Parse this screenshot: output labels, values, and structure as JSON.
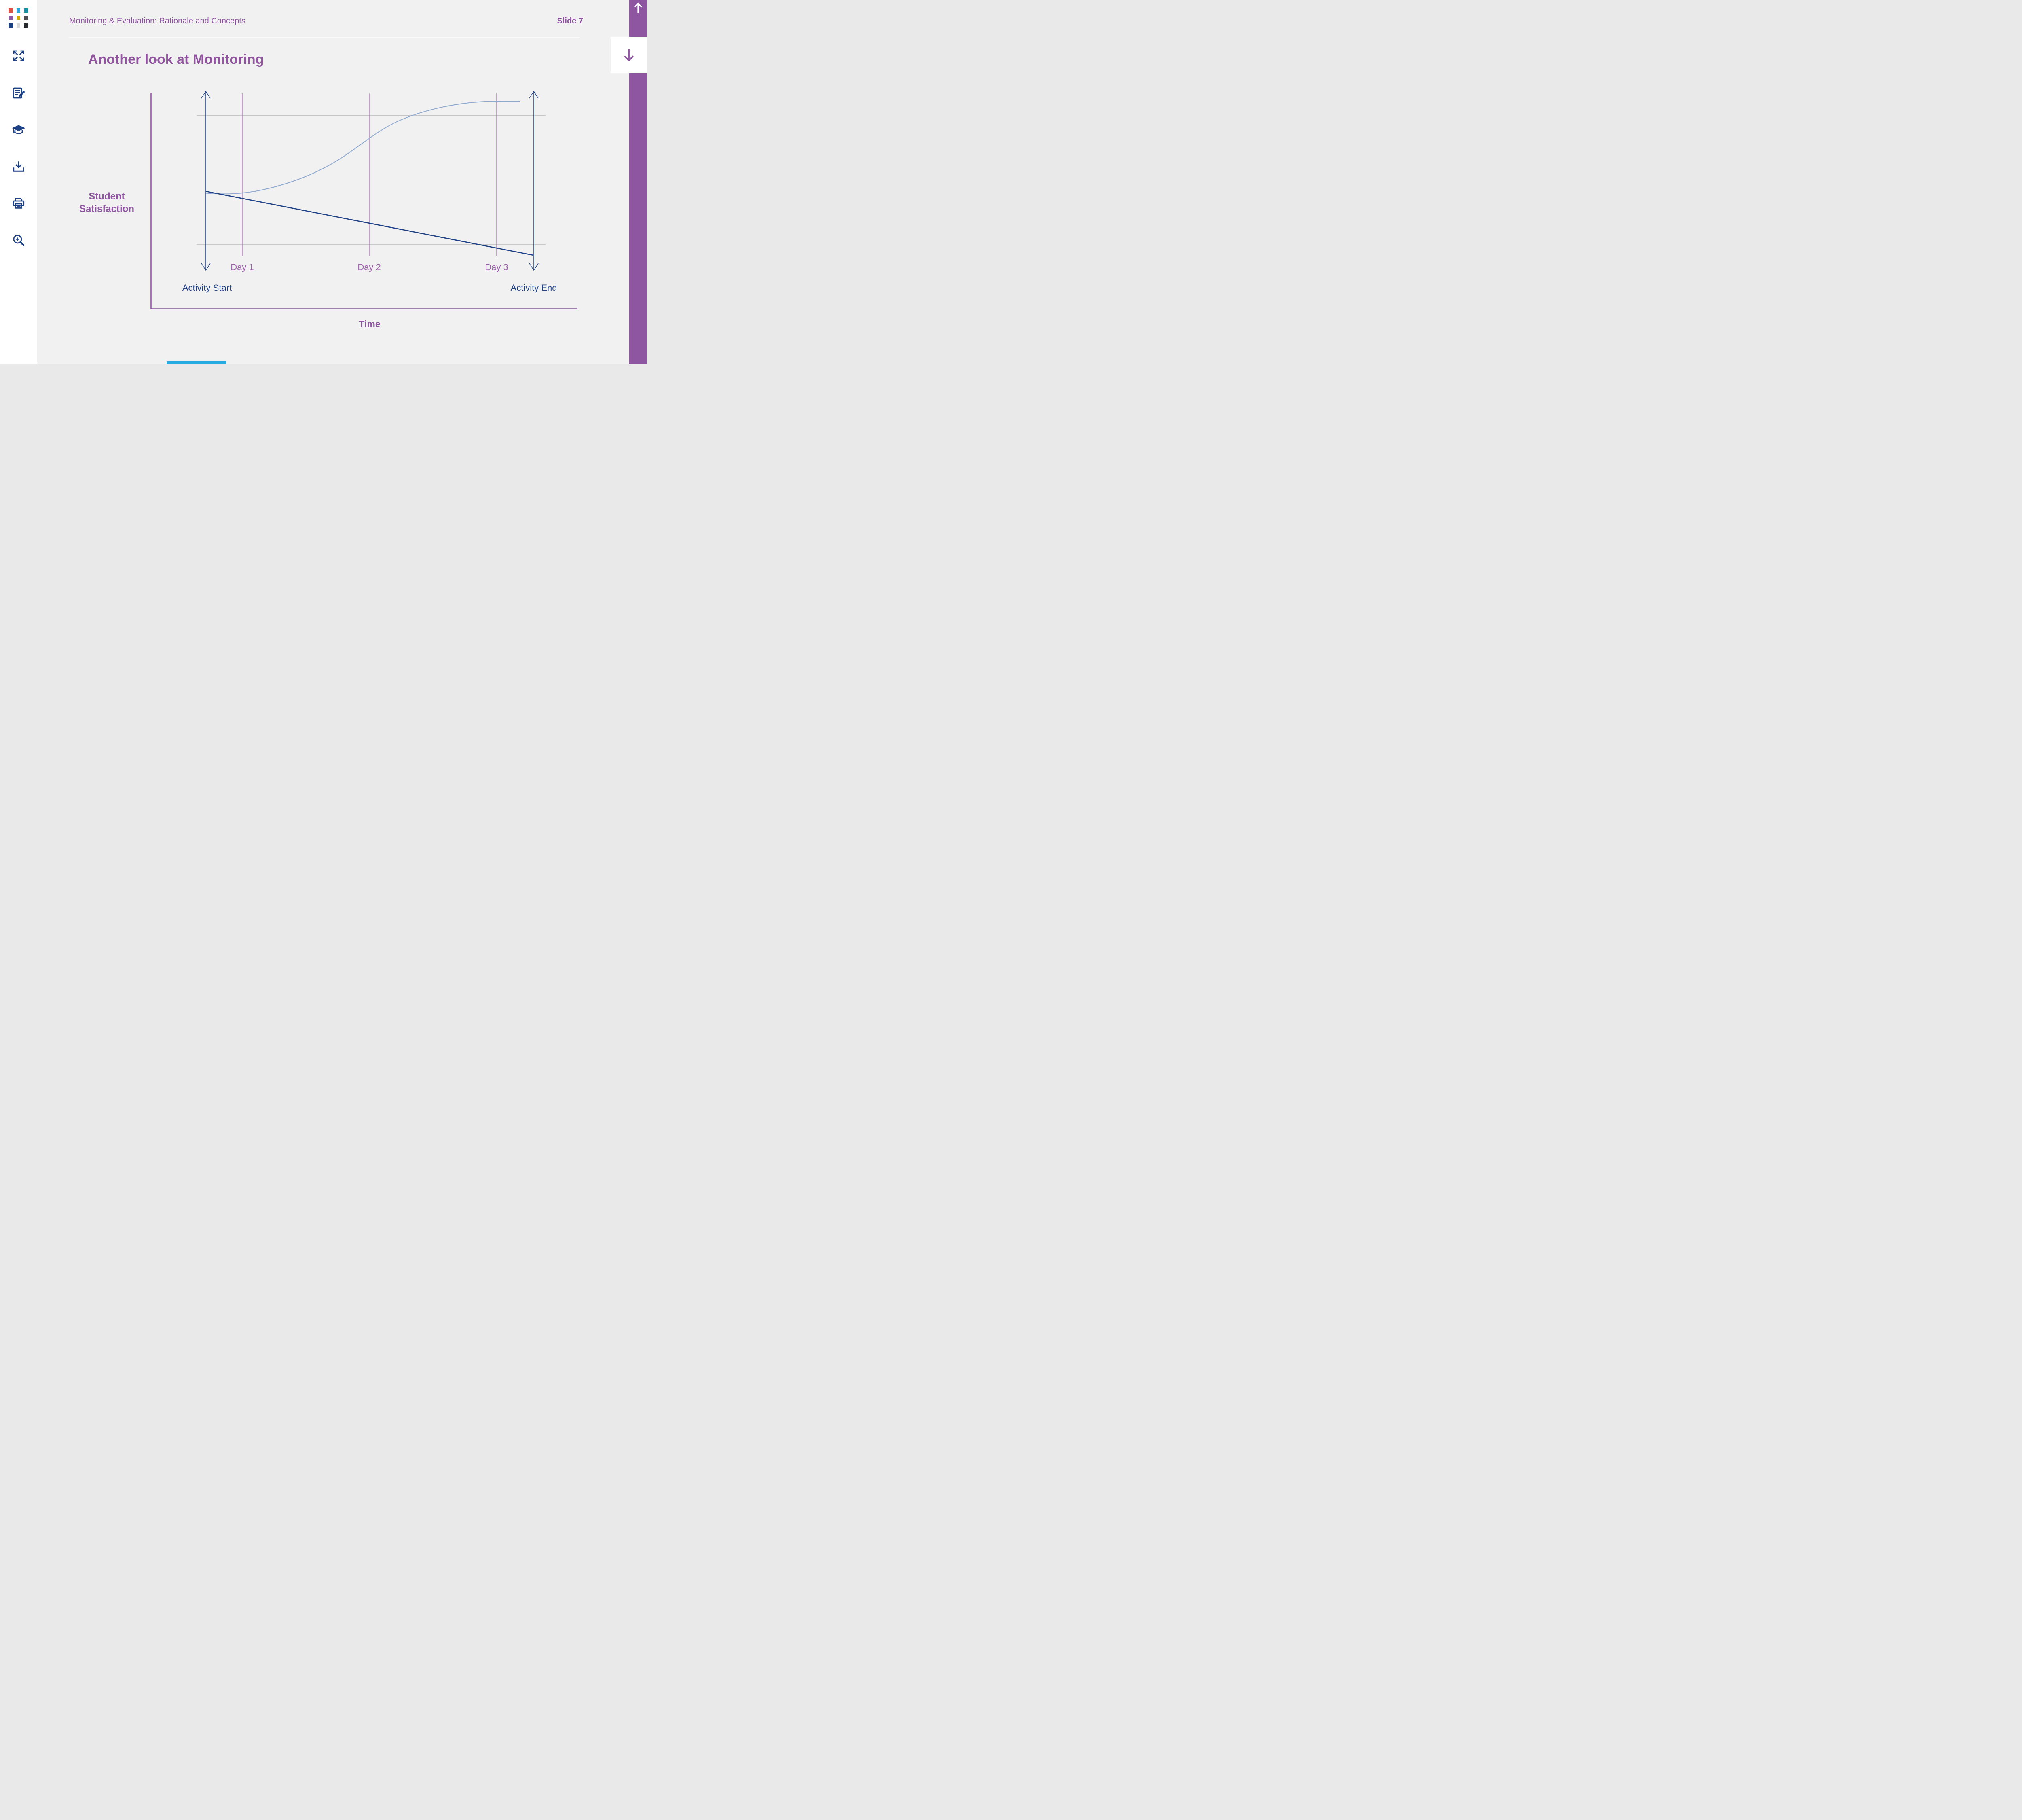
{
  "page": {
    "background": "#F1F1F2",
    "accent_purple": "#91549F",
    "rail_purple": "#8E55A0",
    "navy": "#1F4287",
    "steel_blue": "#8FA9CE",
    "grid_gray": "#B0B0B3",
    "progress_blue": "#29ABE2"
  },
  "header": {
    "course_title": "Monitoring & Evaluation: Rationale and Concepts",
    "slide_label": "Slide 7"
  },
  "sidebar": {
    "logo_colors": [
      "#DC5243",
      "#29A8DF",
      "#0D93A3",
      "#9158A4",
      "#D4A900",
      "#4F4F51",
      "#1C4084",
      "#D6D6D8",
      "#26292E"
    ],
    "icons": [
      {
        "name": "fullscreen"
      },
      {
        "name": "notes"
      },
      {
        "name": "education"
      },
      {
        "name": "download"
      },
      {
        "name": "print"
      },
      {
        "name": "zoom-in"
      }
    ]
  },
  "navigation": {
    "icons": [
      "scroll-up-arrow",
      "scroll-down-arrow"
    ]
  },
  "slide": {
    "title": "Another look at Monitoring"
  },
  "chart_data": {
    "type": "line",
    "title": "Another look at Monitoring",
    "xlabel": "Time",
    "ylabel": "Student Satisfaction",
    "categories": [
      "Day 1",
      "Day 2",
      "Day 3"
    ],
    "annotations": [
      "Activity Start",
      "Activity End"
    ],
    "x_positions_norm": {
      "activity_start": 0.0,
      "day1": 0.11,
      "day2": 0.5,
      "day3": 0.89,
      "activity_end": 1.0
    },
    "ylim": [
      0,
      100
    ],
    "y_ticks": "none (qualitative axis)",
    "gridlines_y_values": [
      90,
      30
    ],
    "legend_position": "none",
    "series": [
      {
        "name": "rising satisfaction curve",
        "color": "#8FA9CE",
        "style": "smooth s-curve",
        "x_norm": [
          0.0,
          0.11,
          0.5,
          0.89,
          0.96
        ],
        "values": [
          54,
          53,
          82,
          96,
          96
        ]
      },
      {
        "name": "declining satisfaction line",
        "color": "#1F4287",
        "style": "straight",
        "x_norm": [
          0.0,
          0.11,
          0.5,
          0.89,
          1.0
        ],
        "values": [
          55,
          51,
          39,
          28,
          25
        ]
      }
    ]
  }
}
